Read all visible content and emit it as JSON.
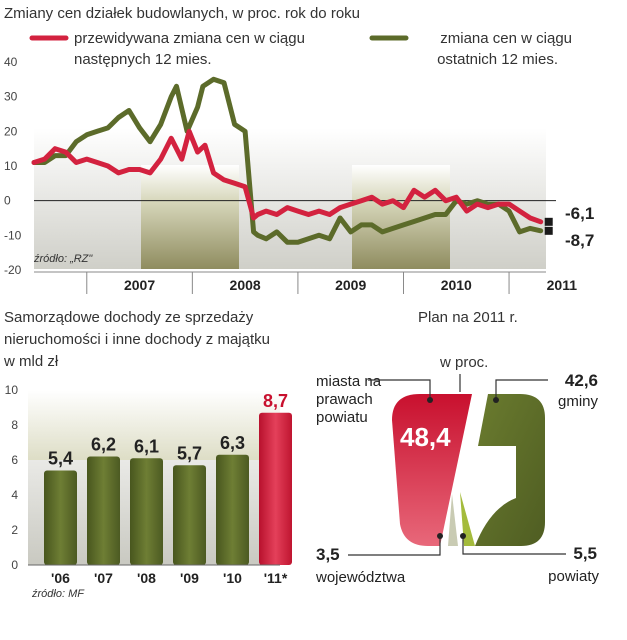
{
  "chart_data": [
    {
      "type": "line",
      "title": "Zmiany cen działek budowlanych, w proc. rok do roku",
      "source": "źródło: „RZ\"",
      "ylim": [
        -20,
        40
      ],
      "yticks": [
        "40",
        "30",
        "20",
        "10",
        "0",
        "-10",
        "-20"
      ],
      "year_labels": [
        "2007",
        "2008",
        "2009",
        "2010",
        "2011"
      ],
      "series": [
        {
          "name": "przewidywana zmiana cen w ciągu następnych 12 mies.",
          "legend_line1": "przewidywana zmiana cen w ciągu",
          "legend_line2": "następnych 12 mies.",
          "color": "#d3223f",
          "end_label": "-6,1",
          "t": [
            2006.5,
            2006.6,
            2006.7,
            2006.8,
            2006.9,
            2007.0,
            2007.1,
            2007.2,
            2007.3,
            2007.4,
            2007.5,
            2007.6,
            2007.7,
            2007.8,
            2007.9,
            2007.97,
            2008.05,
            2008.12,
            2008.2,
            2008.3,
            2008.4,
            2008.5,
            2008.58,
            2008.62,
            2008.7,
            2008.8,
            2008.9,
            2009.0,
            2009.1,
            2009.2,
            2009.3,
            2009.4,
            2009.5,
            2009.6,
            2009.7,
            2009.8,
            2009.9,
            2010.0,
            2010.1,
            2010.2,
            2010.3,
            2010.4,
            2010.5,
            2010.6,
            2010.7,
            2010.8,
            2010.9,
            2011.0,
            2011.1,
            2011.2,
            2011.3
          ],
          "values": [
            11,
            12,
            15,
            14,
            11,
            12,
            11,
            10,
            8,
            9,
            9,
            8,
            12,
            18,
            12,
            20,
            14,
            16,
            8,
            6,
            5,
            4,
            -5,
            -4,
            -3,
            -4,
            -2,
            -3,
            -4,
            -3,
            -4,
            -2,
            -1,
            0,
            1,
            -1,
            0,
            -2,
            3,
            1,
            3,
            0,
            1,
            -3,
            -1,
            -2,
            -1,
            -1,
            -3,
            -5,
            -6.1
          ]
        },
        {
          "name": "zmiana cen w ciągu ostatnich 12 mies.",
          "legend_line1": "zmiana cen w ciągu",
          "legend_line2": "ostatnich 12 mies.",
          "color": "#5c6b2a",
          "end_label": "-8,7",
          "t": [
            2006.5,
            2006.6,
            2006.7,
            2006.8,
            2006.9,
            2007.0,
            2007.1,
            2007.2,
            2007.3,
            2007.4,
            2007.5,
            2007.6,
            2007.7,
            2007.8,
            2007.85,
            2007.95,
            2008.05,
            2008.1,
            2008.2,
            2008.3,
            2008.4,
            2008.5,
            2008.58,
            2008.62,
            2008.7,
            2008.8,
            2008.9,
            2009.0,
            2009.1,
            2009.2,
            2009.3,
            2009.4,
            2009.5,
            2009.6,
            2009.7,
            2009.8,
            2009.9,
            2010.0,
            2010.1,
            2010.2,
            2010.3,
            2010.4,
            2010.5,
            2010.6,
            2010.7,
            2010.8,
            2010.9,
            2011.0,
            2011.1,
            2011.2,
            2011.3
          ],
          "values": [
            11,
            11,
            13,
            13,
            17,
            19,
            20,
            21,
            24,
            26,
            21,
            17,
            22,
            30,
            33,
            20,
            27,
            33,
            35,
            34,
            22,
            20,
            -9,
            -10,
            -11,
            -9,
            -12,
            -12,
            -11,
            -10,
            -11,
            -5,
            -9,
            -7,
            -7,
            -9,
            -8,
            -7,
            -6,
            -5,
            -4,
            -4,
            0,
            -1,
            0,
            -1,
            -1,
            -3,
            -9,
            -8,
            -8.7
          ]
        }
      ]
    },
    {
      "type": "bar",
      "title_line1": "Samorządowe dochody ze sprzedaży",
      "title_line2": "nieruchomości i inne dochody z majątku",
      "title_line3": "w mld zł",
      "source": "źródło: MF",
      "ylim": [
        0,
        10
      ],
      "yticks": [
        "10",
        "8",
        "6",
        "4",
        "2",
        "0"
      ],
      "categories": [
        "'06",
        "'07",
        "'08",
        "'09",
        "'10",
        "'11*"
      ],
      "values": [
        5.4,
        6.2,
        6.1,
        5.7,
        6.3,
        8.7
      ],
      "value_labels": [
        "5,4",
        "6,2",
        "6,1",
        "5,7",
        "6,3",
        "8,7"
      ],
      "colors": [
        "#5c6b2a",
        "#5c6b2a",
        "#5c6b2a",
        "#5c6b2a",
        "#5c6b2a",
        "#d3223f"
      ]
    },
    {
      "type": "pie",
      "title": "Plan na 2011 r.",
      "unit_label": "w proc.",
      "slices": [
        {
          "label_line1": "miasta na",
          "label_line2": "prawach",
          "label_line3": "powiatu",
          "value": 48.4,
          "value_label": "48,4",
          "color": "#d3223f"
        },
        {
          "label": "gminy",
          "value": 42.6,
          "value_label": "42,6",
          "color": "#5c6b2a"
        },
        {
          "label": "powiaty",
          "value": 5.5,
          "value_label": "5,5",
          "color": "#a4bb3c"
        },
        {
          "label": "województwa",
          "value": 3.5,
          "value_label": "3,5",
          "color": "#c9cbb3"
        }
      ]
    }
  ]
}
